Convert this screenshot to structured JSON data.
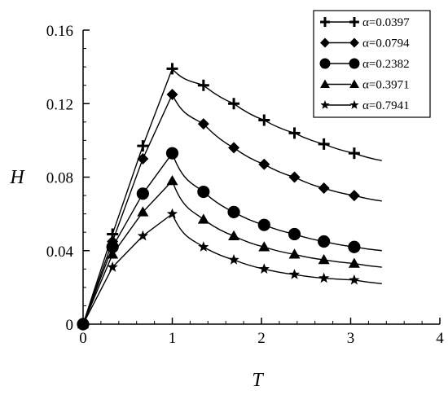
{
  "chart_data": {
    "type": "line",
    "xlabel": "T",
    "ylabel": "H",
    "xlim": [
      0,
      4
    ],
    "ylim": [
      0,
      0.16
    ],
    "xticks": [
      "0",
      "1",
      "2",
      "3",
      "4"
    ],
    "yticks": [
      "0",
      "0.04",
      "0.08",
      "0.12",
      "0.16"
    ],
    "legend_position": "top-right",
    "grid": false,
    "series": [
      {
        "name": "α=0.0397",
        "marker": "plus",
        "points": [
          [
            0,
            0
          ],
          [
            0.33,
            0.049
          ],
          [
            0.67,
            0.097
          ],
          [
            1.0,
            0.139
          ],
          [
            1.35,
            0.13
          ],
          [
            1.69,
            0.12
          ],
          [
            2.03,
            0.111
          ],
          [
            2.37,
            0.104
          ],
          [
            2.7,
            0.098
          ],
          [
            3.04,
            0.093
          ],
          [
            3.35,
            0.089
          ]
        ]
      },
      {
        "name": "α=0.0794",
        "marker": "diamond",
        "points": [
          [
            0,
            0
          ],
          [
            0.33,
            0.045
          ],
          [
            0.67,
            0.09
          ],
          [
            1.0,
            0.125
          ],
          [
            1.35,
            0.109
          ],
          [
            1.69,
            0.096
          ],
          [
            2.03,
            0.087
          ],
          [
            2.37,
            0.08
          ],
          [
            2.7,
            0.074
          ],
          [
            3.04,
            0.07
          ],
          [
            3.35,
            0.067
          ]
        ]
      },
      {
        "name": "α=0.2382",
        "marker": "circle",
        "points": [
          [
            0,
            0
          ],
          [
            0.33,
            0.042
          ],
          [
            0.67,
            0.071
          ],
          [
            1.0,
            0.093
          ],
          [
            1.35,
            0.072
          ],
          [
            1.69,
            0.061
          ],
          [
            2.03,
            0.054
          ],
          [
            2.37,
            0.049
          ],
          [
            2.7,
            0.045
          ],
          [
            3.04,
            0.042
          ],
          [
            3.35,
            0.04
          ]
        ]
      },
      {
        "name": "α=0.3971",
        "marker": "triangle",
        "points": [
          [
            0,
            0
          ],
          [
            0.33,
            0.038
          ],
          [
            0.67,
            0.061
          ],
          [
            1.0,
            0.078
          ],
          [
            1.35,
            0.057
          ],
          [
            1.69,
            0.048
          ],
          [
            2.03,
            0.042
          ],
          [
            2.37,
            0.038
          ],
          [
            2.7,
            0.035
          ],
          [
            3.04,
            0.033
          ],
          [
            3.35,
            0.031
          ]
        ]
      },
      {
        "name": "α=0.7941",
        "marker": "star",
        "points": [
          [
            0,
            0
          ],
          [
            0.33,
            0.031
          ],
          [
            0.67,
            0.048
          ],
          [
            1.0,
            0.06
          ],
          [
            1.35,
            0.042
          ],
          [
            1.69,
            0.035
          ],
          [
            2.03,
            0.03
          ],
          [
            2.37,
            0.027
          ],
          [
            2.7,
            0.025
          ],
          [
            3.04,
            0.024
          ],
          [
            3.35,
            0.022
          ]
        ]
      }
    ]
  }
}
